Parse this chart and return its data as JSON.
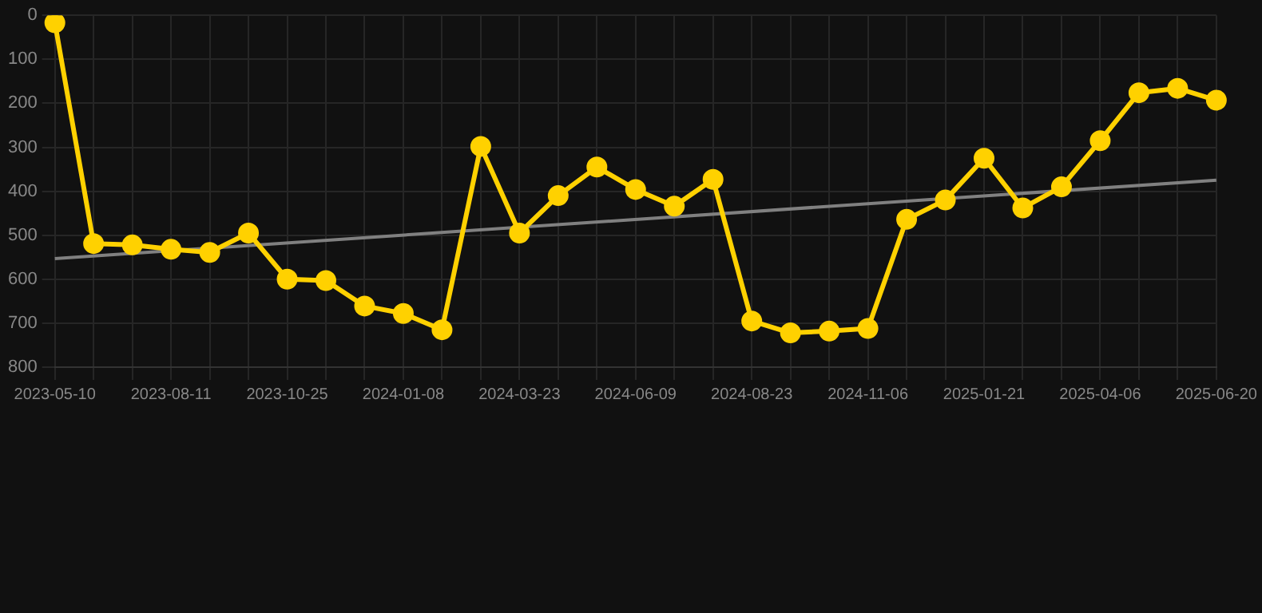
{
  "chart_data": {
    "type": "line",
    "categories": [
      "2023-05-10",
      null,
      null,
      "2023-08-11",
      null,
      null,
      "2023-10-25",
      null,
      null,
      "2024-01-08",
      null,
      null,
      "2024-03-23",
      null,
      null,
      "2024-06-09",
      null,
      null,
      "2024-08-23",
      null,
      null,
      "2024-11-06",
      null,
      null,
      "2025-01-21",
      null,
      null,
      "2025-04-06",
      null,
      null,
      "2025-06-20"
    ],
    "series": [
      {
        "color": "#ffd100",
        "marker": "circle",
        "values": [
          17,
          519,
          522,
          532,
          539,
          495,
          600,
          603,
          661,
          678,
          715,
          298,
          495,
          410,
          345,
          396,
          434,
          373,
          695,
          722,
          718,
          712,
          464,
          420,
          325,
          438,
          390,
          285,
          176,
          166,
          193
        ]
      },
      {
        "color": "#808080",
        "marker": "none",
        "values": [
          553,
          null,
          null,
          null,
          null,
          null,
          null,
          null,
          null,
          null,
          null,
          null,
          null,
          null,
          null,
          null,
          null,
          null,
          null,
          null,
          null,
          null,
          null,
          null,
          null,
          null,
          null,
          null,
          null,
          null,
          375
        ]
      }
    ],
    "ylim": [
      800,
      0
    ],
    "yticks": [
      0,
      100,
      200,
      300,
      400,
      500,
      600,
      700,
      800
    ],
    "grid": true,
    "legend": false
  }
}
